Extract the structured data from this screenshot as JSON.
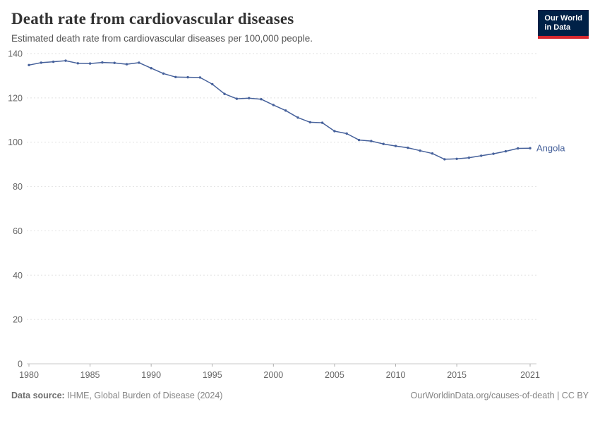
{
  "header": {
    "title": "Death rate from cardiovascular diseases",
    "subtitle": "Estimated death rate from cardiovascular diseases per 100,000 people.",
    "logo": {
      "line1": "Our World",
      "line2": "in Data"
    }
  },
  "colors": {
    "line": "#46619b",
    "series_label": "#46619b",
    "logo_background": "#002147",
    "logo_red": "#d7282f"
  },
  "chart_data": {
    "type": "line",
    "title": "Death rate from cardiovascular diseases",
    "subtitle": "Estimated death rate from cardiovascular diseases per 100,000 people.",
    "xlabel": "",
    "ylabel": "",
    "xlim": [
      1980,
      2021
    ],
    "ylim": [
      0,
      140
    ],
    "x_ticks": [
      1980,
      1985,
      1990,
      1995,
      2000,
      2005,
      2010,
      2015,
      2021
    ],
    "y_ticks": [
      0,
      20,
      40,
      60,
      80,
      100,
      120,
      140
    ],
    "grid": "horizontal dashed",
    "legend_position": "line-end-label",
    "line_color": "#46619b",
    "label_color": "#46619b",
    "series": [
      {
        "name": "Angola",
        "x": [
          1980,
          1981,
          1982,
          1983,
          1984,
          1985,
          1986,
          1987,
          1988,
          1989,
          1990,
          1991,
          1992,
          1993,
          1994,
          1995,
          1996,
          1997,
          1998,
          1999,
          2000,
          2001,
          2002,
          2003,
          2004,
          2005,
          2006,
          2007,
          2008,
          2009,
          2010,
          2011,
          2012,
          2013,
          2014,
          2015,
          2016,
          2017,
          2018,
          2019,
          2020,
          2021
        ],
        "values": [
          134.8,
          135.9,
          136.3,
          136.8,
          135.6,
          135.5,
          136.0,
          135.8,
          135.2,
          135.9,
          133.4,
          131.0,
          129.4,
          129.3,
          129.2,
          126.2,
          121.8,
          119.6,
          119.9,
          119.4,
          116.8,
          114.3,
          111.1,
          109.0,
          108.8,
          105.0,
          103.9,
          101.0,
          100.5,
          99.2,
          98.3,
          97.5,
          96.2,
          94.9,
          92.3,
          92.5,
          93.0,
          93.9,
          94.8,
          95.9,
          97.2,
          97.3
        ]
      }
    ]
  },
  "footer": {
    "source_label": "Data source:",
    "source_text": " IHME, Global Burden of Disease (2024)",
    "attribution_link": "OurWorldinData.org/causes-of-death",
    "attribution_suffix": " | CC BY"
  }
}
